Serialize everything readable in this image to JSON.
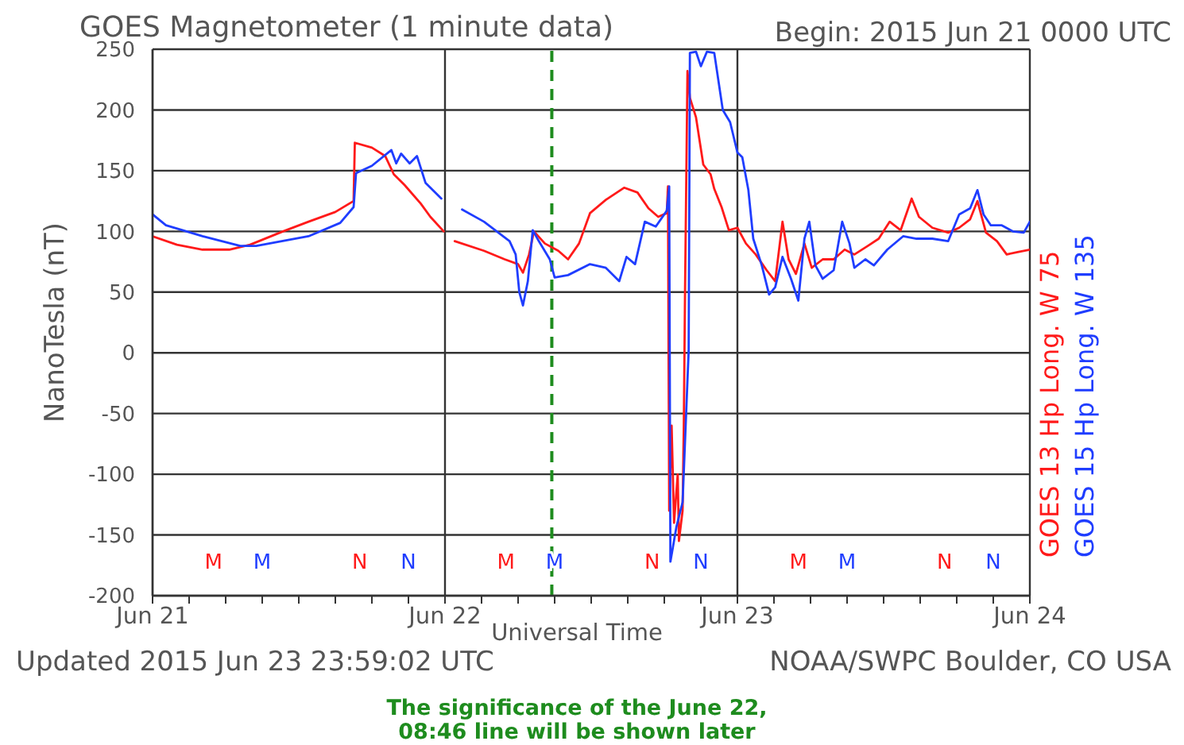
{
  "chart_data": {
    "type": "line",
    "title": "GOES Magnetometer (1 minute data)",
    "subtitle": "Begin: 2015 Jun 21 0000 UTC",
    "xlabel": "Universal Time",
    "ylabel": "NanoTesla (nT)",
    "xlim": [
      "2015-06-21T00:00",
      "2015-06-24T00:00"
    ],
    "xticks": [
      {
        "value": "2015-06-21T00:00",
        "label": "Jun 21"
      },
      {
        "value": "2015-06-21T03:00",
        "label": null
      },
      {
        "value": "2015-06-21T06:00",
        "label": null
      },
      {
        "value": "2015-06-21T09:00",
        "label": null
      },
      {
        "value": "2015-06-21T12:00",
        "label": null
      },
      {
        "value": "2015-06-21T15:00",
        "label": null
      },
      {
        "value": "2015-06-21T18:00",
        "label": null
      },
      {
        "value": "2015-06-21T21:00",
        "label": null
      },
      {
        "value": "2015-06-22T00:00",
        "label": "Jun 22"
      },
      {
        "value": "2015-06-22T03:00",
        "label": null
      },
      {
        "value": "2015-06-22T06:00",
        "label": null
      },
      {
        "value": "2015-06-22T09:00",
        "label": null
      },
      {
        "value": "2015-06-22T12:00",
        "label": null
      },
      {
        "value": "2015-06-22T15:00",
        "label": null
      },
      {
        "value": "2015-06-22T18:00",
        "label": null
      },
      {
        "value": "2015-06-22T21:00",
        "label": null
      },
      {
        "value": "2015-06-23T00:00",
        "label": "Jun 23"
      },
      {
        "value": "2015-06-23T03:00",
        "label": null
      },
      {
        "value": "2015-06-23T06:00",
        "label": null
      },
      {
        "value": "2015-06-23T09:00",
        "label": null
      },
      {
        "value": "2015-06-23T12:00",
        "label": null
      },
      {
        "value": "2015-06-23T15:00",
        "label": null
      },
      {
        "value": "2015-06-23T18:00",
        "label": null
      },
      {
        "value": "2015-06-23T21:00",
        "label": null
      },
      {
        "value": "2015-06-24T00:00",
        "label": "Jun 24"
      }
    ],
    "ylim": [
      -200,
      250
    ],
    "yticks": [
      -200,
      -150,
      -100,
      -50,
      0,
      50,
      100,
      150,
      200,
      250
    ],
    "grid": true,
    "legend": "right",
    "marker": "none",
    "series": [
      {
        "name": "GOES 13 Hp Long. W 75",
        "color": "#ff1a1a",
        "x": [
          "2015-06-21T00:00",
          "2015-06-21T02:00",
          "2015-06-21T04:06",
          "2015-06-21T06:18",
          "2015-06-21T08:00",
          "2015-06-21T10:42",
          "2015-06-21T12:48",
          "2015-06-21T15:00",
          "2015-06-21T16:30",
          "2015-06-21T16:36",
          "2015-06-21T18:00",
          "2015-06-21T19:06",
          "2015-06-21T19:48",
          "2015-06-21T20:42",
          "2015-06-21T22:00",
          "2015-06-21T22:48",
          "2015-06-21T23:54",
          "2015-06-22T00:12",
          "2015-06-22T00:48",
          "2015-06-22T03:12",
          "2015-06-22T04:54",
          "2015-06-22T06:00",
          "2015-06-22T06:24",
          "2015-06-22T06:54",
          "2015-06-22T07:18",
          "2015-06-22T08:12",
          "2015-06-22T09:18",
          "2015-06-22T10:06",
          "2015-06-22T11:00",
          "2015-06-22T11:54",
          "2015-06-22T13:12",
          "2015-06-22T14:42",
          "2015-06-22T15:48",
          "2015-06-22T16:42",
          "2015-06-22T17:30",
          "2015-06-22T18:12",
          "2015-06-22T18:18",
          "2015-06-22T18:24",
          "2015-06-22T18:36",
          "2015-06-22T18:48",
          "2015-06-22T19:06",
          "2015-06-22T19:12",
          "2015-06-22T19:30",
          "2015-06-22T19:36",
          "2015-06-22T19:42",
          "2015-06-22T19:54",
          "2015-06-22T20:06",
          "2015-06-22T20:36",
          "2015-06-22T21:12",
          "2015-06-22T21:48",
          "2015-06-22T22:06",
          "2015-06-22T22:42",
          "2015-06-22T23:18",
          "2015-06-23T00:00",
          "2015-06-23T00:42",
          "2015-06-23T01:30",
          "2015-06-23T02:24",
          "2015-06-23T03:06",
          "2015-06-23T03:42",
          "2015-06-23T04:12",
          "2015-06-23T04:48",
          "2015-06-23T05:30",
          "2015-06-23T06:06",
          "2015-06-23T07:00",
          "2015-06-23T07:54",
          "2015-06-23T08:48",
          "2015-06-23T09:36",
          "2015-06-23T10:42",
          "2015-06-23T11:36",
          "2015-06-23T12:30",
          "2015-06-23T13:24",
          "2015-06-23T14:18",
          "2015-06-23T14:54",
          "2015-06-23T16:00",
          "2015-06-23T17:18",
          "2015-06-23T18:12",
          "2015-06-23T19:06",
          "2015-06-23T19:42",
          "2015-06-23T20:24",
          "2015-06-23T21:18",
          "2015-06-23T22:06",
          "2015-06-23T23:00",
          "2015-06-24T00:00"
        ],
        "values": [
          96,
          89,
          85,
          85,
          89,
          100,
          108,
          116,
          125,
          173,
          169,
          162,
          147,
          138,
          123,
          112,
          100,
          null,
          92,
          84,
          77,
          73,
          66,
          81,
          100,
          90,
          84,
          77,
          90,
          115,
          126,
          136,
          132,
          119,
          112,
          115,
          137,
          -130,
          -60,
          -140,
          -100,
          -155,
          -130,
          -60,
          50,
          232,
          210,
          194,
          155,
          147,
          135,
          120,
          101,
          103,
          90,
          81,
          68,
          59,
          108,
          77,
          65,
          90,
          70,
          77,
          77,
          85,
          81,
          88,
          94,
          108,
          101,
          127,
          112,
          103,
          99,
          103,
          110,
          125,
          99,
          92,
          81,
          83,
          85
        ]
      },
      {
        "name": "GOES 15 Hp Long. W 135",
        "color": "#1f3dff",
        "x": [
          "2015-06-21T00:00",
          "2015-06-21T01:06",
          "2015-06-21T04:06",
          "2015-06-21T07:12",
          "2015-06-21T08:30",
          "2015-06-21T12:48",
          "2015-06-21T15:24",
          "2015-06-21T16:30",
          "2015-06-21T16:42",
          "2015-06-21T18:00",
          "2015-06-21T19:36",
          "2015-06-21T20:00",
          "2015-06-21T20:24",
          "2015-06-21T21:06",
          "2015-06-21T21:42",
          "2015-06-21T22:24",
          "2015-06-21T23:42",
          "2015-06-22T00:30",
          "2015-06-22T01:24",
          "2015-06-22T03:12",
          "2015-06-22T05:18",
          "2015-06-22T05:48",
          "2015-06-22T06:06",
          "2015-06-22T06:24",
          "2015-06-22T06:48",
          "2015-06-22T07:12",
          "2015-06-22T07:42",
          "2015-06-22T08:36",
          "2015-06-22T09:00",
          "2015-06-22T10:06",
          "2015-06-22T11:54",
          "2015-06-22T13:12",
          "2015-06-22T14:18",
          "2015-06-22T14:54",
          "2015-06-22T15:36",
          "2015-06-22T16:24",
          "2015-06-22T17:18",
          "2015-06-22T18:12",
          "2015-06-22T18:24",
          "2015-06-22T18:30",
          "2015-06-22T19:00",
          "2015-06-22T19:30",
          "2015-06-22T20:00",
          "2015-06-22T20:06",
          "2015-06-22T20:36",
          "2015-06-22T21:00",
          "2015-06-22T21:30",
          "2015-06-22T22:06",
          "2015-06-22T22:48",
          "2015-06-22T23:24",
          "2015-06-23T00:00",
          "2015-06-23T00:24",
          "2015-06-23T00:54",
          "2015-06-23T01:18",
          "2015-06-23T02:00",
          "2015-06-23T02:36",
          "2015-06-23T03:06",
          "2015-06-23T03:42",
          "2015-06-23T04:24",
          "2015-06-23T05:00",
          "2015-06-23T05:30",
          "2015-06-23T05:54",
          "2015-06-23T06:24",
          "2015-06-23T07:00",
          "2015-06-23T07:54",
          "2015-06-23T08:36",
          "2015-06-23T09:12",
          "2015-06-23T09:36",
          "2015-06-23T10:30",
          "2015-06-23T11:12",
          "2015-06-23T12:18",
          "2015-06-23T13:36",
          "2015-06-23T14:42",
          "2015-06-23T16:00",
          "2015-06-23T17:18",
          "2015-06-23T18:12",
          "2015-06-23T19:06",
          "2015-06-23T19:42",
          "2015-06-23T20:12",
          "2015-06-23T20:48",
          "2015-06-23T21:42",
          "2015-06-23T22:36",
          "2015-06-23T23:30",
          "2015-06-24T00:00"
        ],
        "values": [
          114,
          105,
          96,
          88,
          88,
          96,
          107,
          120,
          148,
          154,
          167,
          156,
          164,
          156,
          162,
          140,
          127,
          null,
          118,
          108,
          92,
          81,
          50,
          39,
          59,
          101,
          92,
          77,
          62,
          64,
          73,
          70,
          59,
          79,
          73,
          108,
          104,
          117,
          137,
          -172,
          -143,
          -123,
          2,
          247,
          248,
          236,
          248,
          247,
          200,
          190,
          165,
          161,
          134,
          94,
          72,
          48,
          54,
          79,
          61,
          43,
          94,
          108,
          72,
          61,
          68,
          108,
          90,
          70,
          77,
          72,
          85,
          96,
          94,
          94,
          92,
          114,
          119,
          134,
          114,
          105,
          105,
          100,
          99,
          108
        ]
      }
    ],
    "ref_lines": [
      {
        "axis": "x",
        "value": "2015-06-22T08:46",
        "color": "#1e8c1e",
        "line_style": "dashed"
      }
    ],
    "annotations": [
      "Updated 2015 Jun 23 23:59:02 UTC",
      "NOAA/SWPC Boulder, CO USA",
      "The significance of the June 22, 08:46 line will be shown later",
      "M",
      "M",
      "N",
      "N",
      "M",
      "M",
      "N",
      "N",
      "M",
      "M",
      "N",
      "N"
    ]
  }
}
